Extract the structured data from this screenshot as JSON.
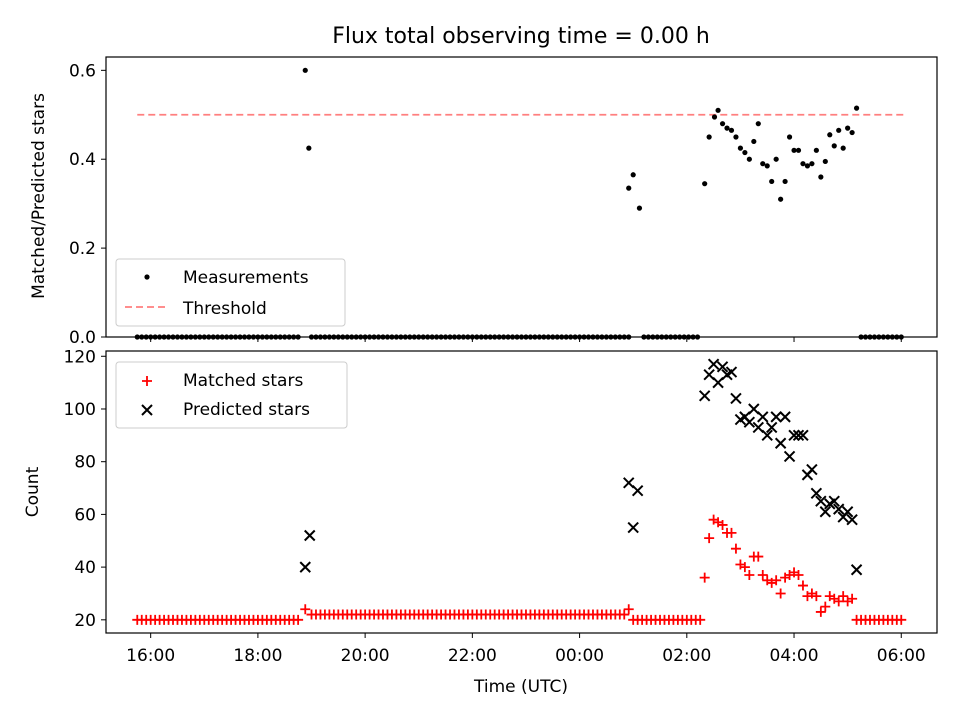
{
  "chart_data": [
    {
      "type": "scatter",
      "title": "Flux total observing time = 0.00 h",
      "ylabel": "Matched/Predicted stars",
      "xlabel": "",
      "xlim": [
        "15:10",
        "06:40"
      ],
      "ylim": [
        0,
        0.63
      ],
      "y_ticks": [
        "0.0",
        "0.2",
        "0.4",
        "0.6"
      ],
      "legend_position": "lower-left",
      "series": [
        {
          "name": "Measurements",
          "marker": "dot",
          "color": "#000000",
          "points": [
            [
              "18:53",
              0.6
            ],
            [
              "18:57",
              0.425
            ],
            [
              "00:55",
              0.335
            ],
            [
              "01:00",
              0.365
            ],
            [
              "01:07",
              0.29
            ],
            [
              "02:20",
              0.345
            ],
            [
              "02:25",
              0.45
            ],
            [
              "02:31",
              0.495
            ],
            [
              "02:35",
              0.51
            ],
            [
              "02:40",
              0.48
            ],
            [
              "02:45",
              0.47
            ],
            [
              "02:50",
              0.465
            ],
            [
              "02:55",
              0.45
            ],
            [
              "03:00",
              0.425
            ],
            [
              "03:05",
              0.415
            ],
            [
              "03:10",
              0.4
            ],
            [
              "03:15",
              0.44
            ],
            [
              "03:20",
              0.48
            ],
            [
              "03:25",
              0.39
            ],
            [
              "03:30",
              0.385
            ],
            [
              "03:35",
              0.35
            ],
            [
              "03:40",
              0.4
            ],
            [
              "03:45",
              0.31
            ],
            [
              "03:50",
              0.35
            ],
            [
              "03:55",
              0.45
            ],
            [
              "04:00",
              0.42
            ],
            [
              "04:05",
              0.42
            ],
            [
              "04:10",
              0.39
            ],
            [
              "04:15",
              0.385
            ],
            [
              "04:20",
              0.39
            ],
            [
              "04:25",
              0.42
            ],
            [
              "04:30",
              0.36
            ],
            [
              "04:35",
              0.395
            ],
            [
              "04:40",
              0.455
            ],
            [
              "04:45",
              0.43
            ],
            [
              "04:50",
              0.465
            ],
            [
              "04:55",
              0.425
            ],
            [
              "05:00",
              0.47
            ],
            [
              "05:05",
              0.46
            ],
            [
              "05:10",
              0.515
            ]
          ],
          "zero_runs": [
            [
              "15:45",
              "18:45",
              5
            ],
            [
              "19:00",
              "00:55",
              5
            ],
            [
              "01:12",
              "02:15",
              5
            ],
            [
              "05:15",
              "06:00",
              5
            ]
          ]
        },
        {
          "name": "Threshold",
          "type": "line",
          "style": "dashed",
          "color": "#ff7f7f",
          "x": [
            "15:45",
            "06:03"
          ],
          "values": [
            0.5,
            0.5
          ]
        }
      ]
    },
    {
      "type": "scatter",
      "title": "",
      "ylabel": "Count",
      "xlabel": "Time (UTC)",
      "xlim": [
        "15:10",
        "06:40"
      ],
      "ylim": [
        15,
        122
      ],
      "y_ticks": [
        "20",
        "40",
        "60",
        "80",
        "100",
        "120"
      ],
      "x_ticks": [
        "16:00",
        "18:00",
        "20:00",
        "22:00",
        "00:00",
        "02:00",
        "04:00",
        "06:00"
      ],
      "legend_position": "upper-left",
      "series": [
        {
          "name": "Matched stars",
          "marker": "plus",
          "color": "#ff0000",
          "points": [
            [
              "18:53",
              24
            ],
            [
              "00:55",
              24
            ],
            [
              "02:20",
              36
            ],
            [
              "02:25",
              51
            ],
            [
              "02:30",
              58
            ],
            [
              "02:35",
              57
            ],
            [
              "02:40",
              56
            ],
            [
              "02:45",
              53
            ],
            [
              "02:50",
              53
            ],
            [
              "02:55",
              47
            ],
            [
              "03:00",
              41
            ],
            [
              "03:05",
              40
            ],
            [
              "03:10",
              37
            ],
            [
              "03:15",
              44
            ],
            [
              "03:20",
              44
            ],
            [
              "03:25",
              37
            ],
            [
              "03:30",
              35
            ],
            [
              "03:35",
              34
            ],
            [
              "03:40",
              35
            ],
            [
              "03:45",
              30
            ],
            [
              "03:50",
              36
            ],
            [
              "03:55",
              37
            ],
            [
              "04:00",
              38
            ],
            [
              "04:05",
              37
            ],
            [
              "04:10",
              33
            ],
            [
              "04:15",
              29
            ],
            [
              "04:20",
              30
            ],
            [
              "04:25",
              29
            ],
            [
              "04:30",
              23
            ],
            [
              "04:35",
              25
            ],
            [
              "04:40",
              29
            ],
            [
              "04:45",
              28
            ],
            [
              "04:50",
              27
            ],
            [
              "04:55",
              29
            ],
            [
              "05:00",
              27
            ],
            [
              "05:05",
              28
            ]
          ],
          "constant_runs": [
            [
              "15:45",
              "18:45",
              5,
              20
            ],
            [
              "19:00",
              "00:50",
              5,
              22
            ],
            [
              "01:00",
              "02:15",
              5,
              20
            ],
            [
              "05:10",
              "06:00",
              5,
              20
            ]
          ]
        },
        {
          "name": "Predicted stars",
          "marker": "x",
          "color": "#000000",
          "points": [
            [
              "18:53",
              40
            ],
            [
              "18:58",
              52
            ],
            [
              "00:55",
              72
            ],
            [
              "01:00",
              55
            ],
            [
              "01:05",
              69
            ],
            [
              "02:20",
              105
            ],
            [
              "02:25",
              113
            ],
            [
              "02:30",
              117
            ],
            [
              "02:35",
              110
            ],
            [
              "02:40",
              116
            ],
            [
              "02:45",
              113
            ],
            [
              "02:50",
              114
            ],
            [
              "02:55",
              104
            ],
            [
              "03:00",
              96
            ],
            [
              "03:05",
              97
            ],
            [
              "03:10",
              95
            ],
            [
              "03:15",
              100
            ],
            [
              "03:20",
              93
            ],
            [
              "03:25",
              97
            ],
            [
              "03:30",
              90
            ],
            [
              "03:35",
              93
            ],
            [
              "03:40",
              97
            ],
            [
              "03:45",
              87
            ],
            [
              "03:50",
              97
            ],
            [
              "03:55",
              82
            ],
            [
              "04:00",
              90
            ],
            [
              "04:05",
              90
            ],
            [
              "04:10",
              90
            ],
            [
              "04:15",
              75
            ],
            [
              "04:20",
              77
            ],
            [
              "04:25",
              68
            ],
            [
              "04:30",
              65
            ],
            [
              "04:35",
              61
            ],
            [
              "04:40",
              64
            ],
            [
              "04:45",
              65
            ],
            [
              "04:50",
              62
            ],
            [
              "04:55",
              59
            ],
            [
              "05:00",
              61
            ],
            [
              "05:05",
              58
            ],
            [
              "05:10",
              39
            ]
          ]
        }
      ]
    }
  ]
}
